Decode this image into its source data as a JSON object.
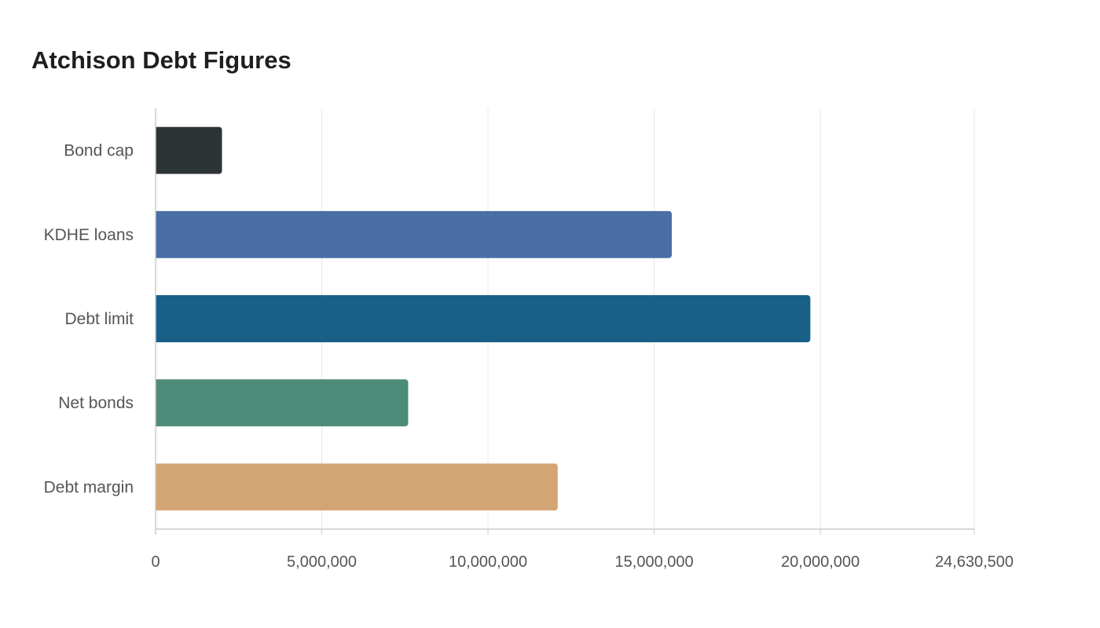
{
  "chart_data": {
    "type": "bar",
    "orientation": "horizontal",
    "title": "Atchison Debt Figures",
    "xlabel": "",
    "ylabel": "",
    "categories": [
      "Bond cap",
      "KDHE loans",
      "Debt limit",
      "Net bonds",
      "Debt margin"
    ],
    "values": [
      2000000,
      15530000,
      19700000,
      7600000,
      12100000
    ],
    "colors": [
      "#2d3436",
      "#4a6fa5",
      "#186087",
      "#4e8c7a",
      "#d4a574"
    ],
    "x_ticks": [
      "0",
      "5,000,000",
      "10,000,000",
      "15,000,000",
      "20,000,000",
      "24,630,500"
    ],
    "xlim": [
      0,
      24630500
    ],
    "grid": true,
    "legend": "none"
  }
}
